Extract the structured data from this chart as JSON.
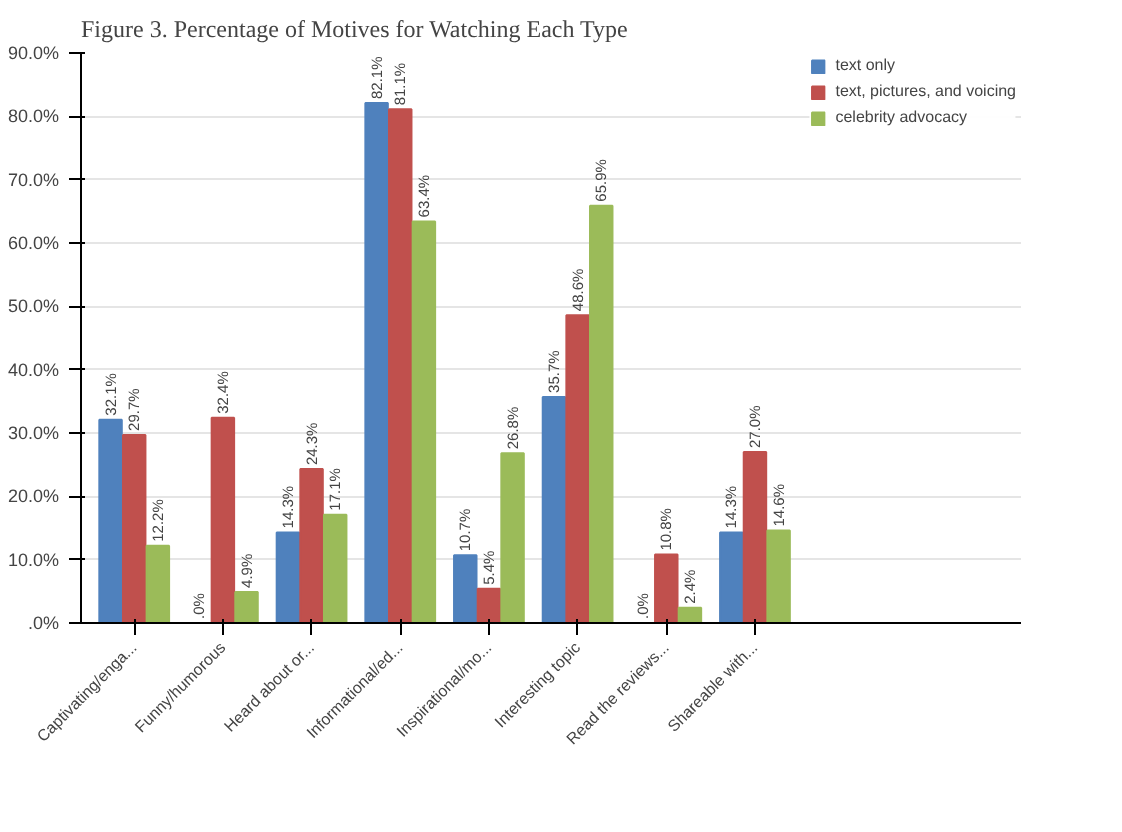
{
  "chart_data": {
    "type": "bar",
    "title": "Figure 3. Percentage of Motives for Watching Each Type",
    "categories": [
      "Captivating/enga...",
      "Funny/humorous",
      "Heard about or...",
      "Informational/ed...",
      "Inspirational/mo...",
      "Interesting topic",
      "Read the reviews...",
      "Shareable with..."
    ],
    "series": [
      {
        "name": "text only",
        "color": "#4f81bd",
        "values": [
          32.1,
          0,
          14.3,
          82.1,
          10.7,
          35.7,
          0,
          14.3
        ],
        "value_labels": [
          "32.1%",
          ".0%",
          "14.3%",
          "82.1%",
          "10.7%",
          "35.7%",
          ".0%",
          "14.3%"
        ]
      },
      {
        "name": "text, pictures, and voicing",
        "color": "#c0504d",
        "values": [
          29.7,
          32.4,
          24.3,
          81.1,
          5.4,
          48.6,
          10.8,
          27.0
        ],
        "value_labels": [
          "29.7%",
          "32.4%",
          "24.3%",
          "81.1%",
          "5.4%",
          "48.6%",
          "10.8%",
          "27.0%"
        ]
      },
      {
        "name": "celebrity advocacy",
        "color": "#9bbb59",
        "values": [
          12.2,
          4.9,
          17.1,
          63.4,
          26.8,
          65.9,
          2.4,
          14.6
        ],
        "value_labels": [
          "12.2%",
          "4.9%",
          "17.1%",
          "63.4%",
          "26.8%",
          "65.9%",
          "2.4%",
          "14.6%"
        ]
      }
    ],
    "ylim": [
      0,
      90
    ],
    "yticks": [
      {
        "value": 0,
        "label": ".0%"
      },
      {
        "value": 10,
        "label": "10.0%"
      },
      {
        "value": 20,
        "label": "20.0%"
      },
      {
        "value": 30,
        "label": "30.0%"
      },
      {
        "value": 40,
        "label": "40.0%"
      },
      {
        "value": 50,
        "label": "50.0%"
      },
      {
        "value": 60,
        "label": "60.0%"
      },
      {
        "value": 70,
        "label": "70.0%"
      },
      {
        "value": 80,
        "label": "80.0%"
      },
      {
        "value": 90,
        "label": "90.0%"
      }
    ],
    "grid": "y",
    "legend": "right"
  }
}
